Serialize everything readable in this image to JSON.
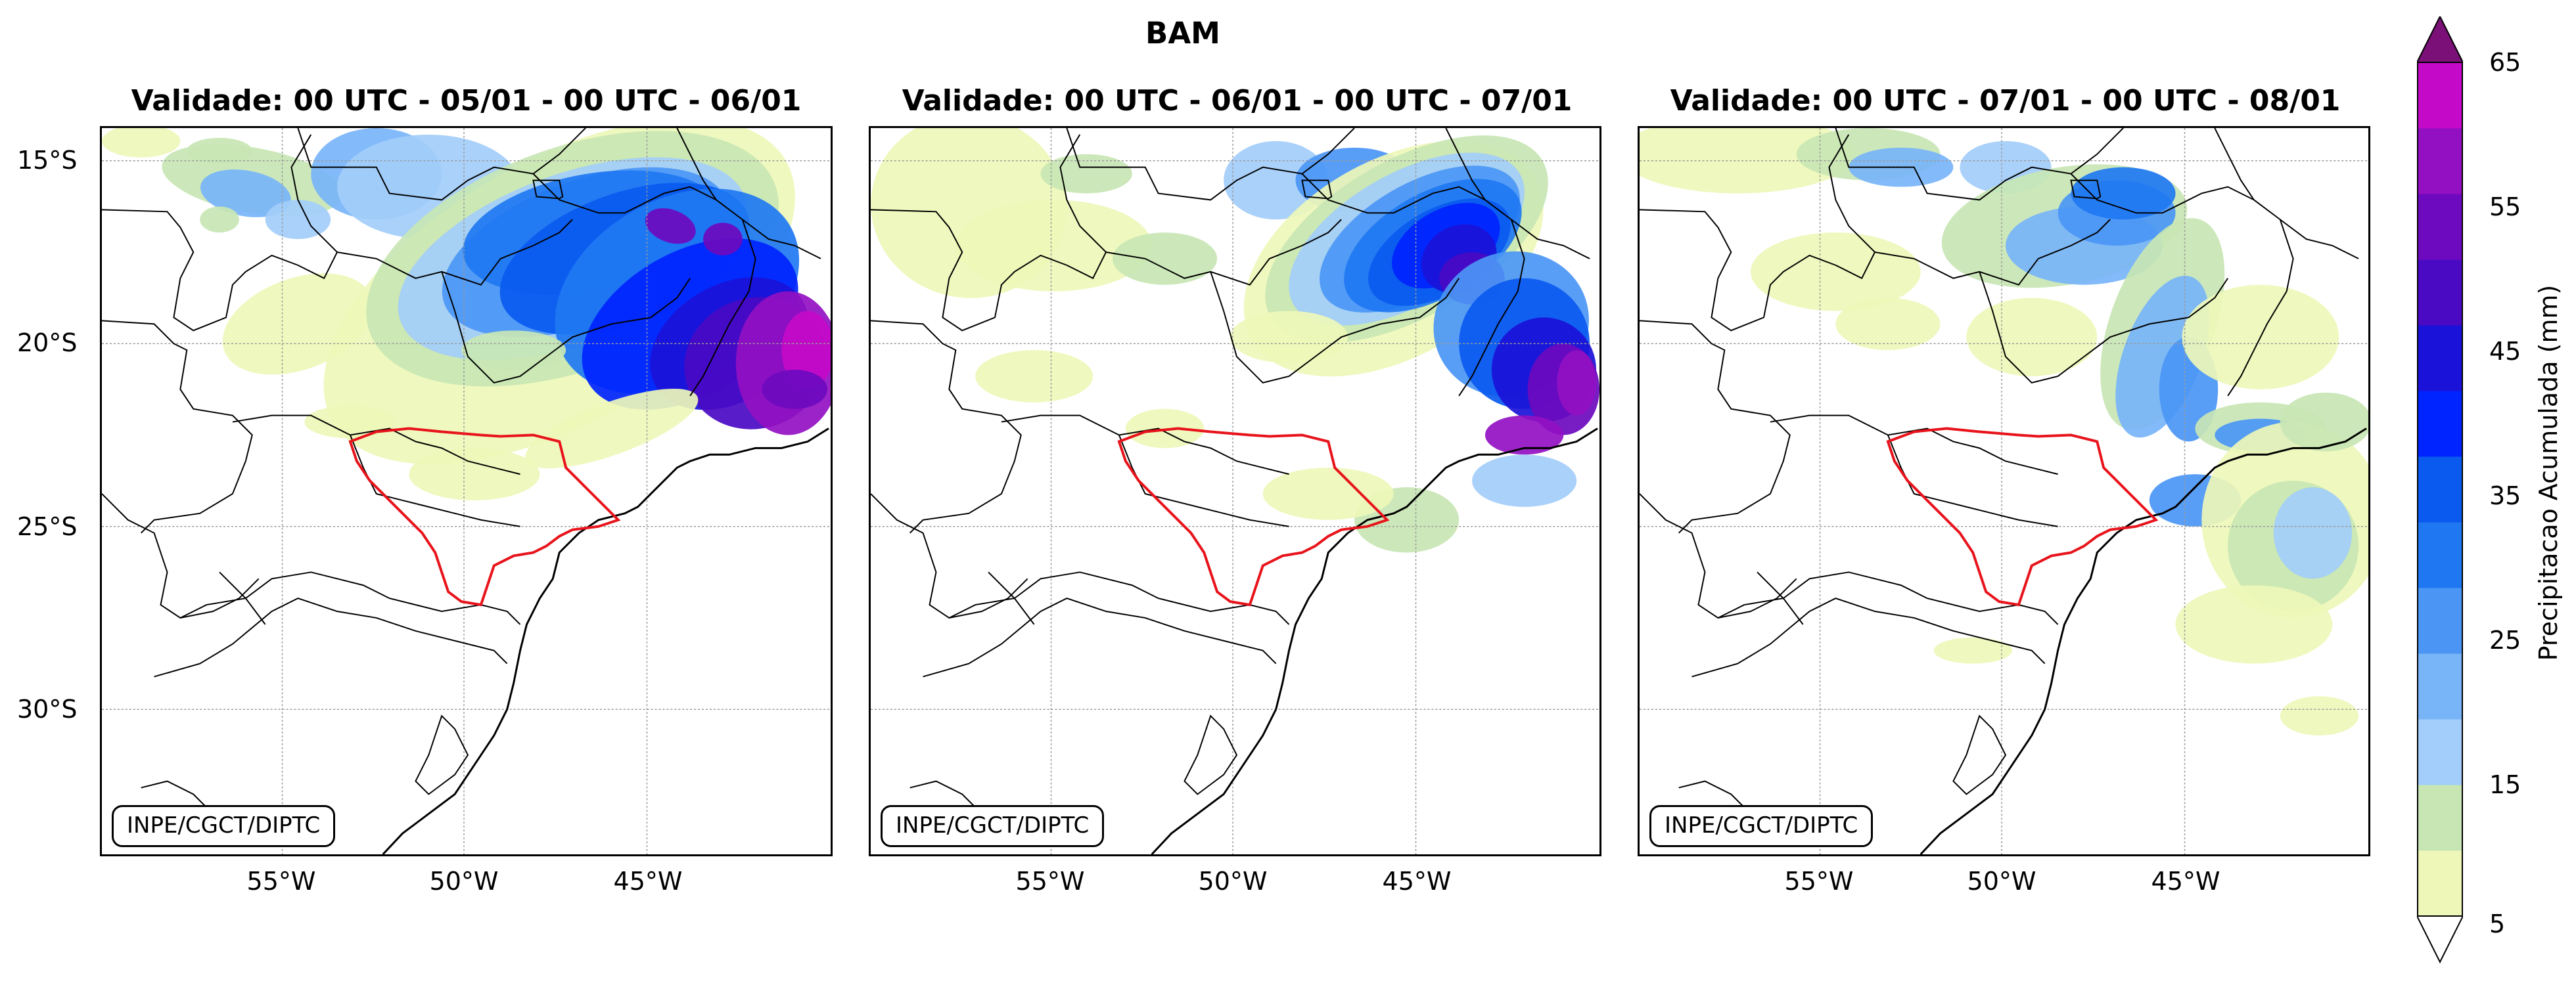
{
  "figure_title": "BAM",
  "panels": [
    {
      "title": "Validade: 00 UTC - 05/01 - 00 UTC - 06/01"
    },
    {
      "title": "Validade: 00 UTC - 06/01 - 00 UTC - 07/01"
    },
    {
      "title": "Validade: 00 UTC - 07/01 - 00 UTC - 08/01"
    }
  ],
  "lat_labels": [
    "15°S",
    "20°S",
    "25°S",
    "30°S"
  ],
  "lon_labels": [
    "55°W",
    "50°W",
    "45°W"
  ],
  "credit": "INPE/CGCT/DIPTC",
  "colorbar": {
    "label": "Precipitacao Acumulada (mm)",
    "ticks": [
      "5",
      "15",
      "25",
      "35",
      "45",
      "55",
      "65"
    ],
    "levels": [
      5,
      10,
      15,
      20,
      25,
      30,
      35,
      40,
      45,
      50,
      55,
      60,
      65
    ],
    "colors": [
      "#eef7b8",
      "#c8e6b4",
      "#a3cdfa",
      "#78b4f8",
      "#4b96f5",
      "#1f78f2",
      "#0a5af0",
      "#0024ff",
      "#1a12d8",
      "#4a0ac4",
      "#6d0abf",
      "#9210c2",
      "#c40ac8"
    ],
    "over_color": "#7a1078",
    "under_color": "#ffffff"
  },
  "colors": {
    "basin_outline": "#e8131b",
    "coastline": "#000000",
    "gridline": "#9a9a9a"
  }
}
